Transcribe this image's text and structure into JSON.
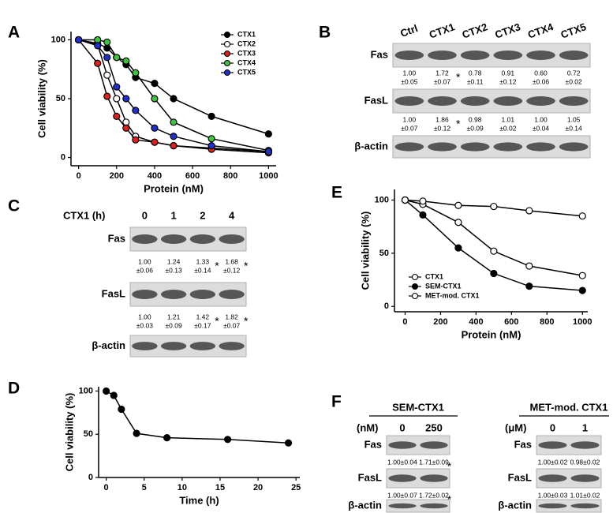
{
  "panel_labels": [
    "A",
    "B",
    "C",
    "D",
    "E",
    "F"
  ],
  "chart_data": [
    {
      "type": "line",
      "xlabel": "Protein (nM)",
      "ylabel": "Cell viability (%)",
      "x": [
        0,
        100,
        150,
        200,
        250,
        300,
        400,
        500,
        700,
        1000
      ],
      "series": [
        {
          "name": "CTX1",
          "color": "#000000",
          "values": [
            100,
            97,
            93,
            85,
            79,
            68,
            63,
            50,
            35,
            20
          ]
        },
        {
          "name": "CTX2",
          "color": "#ffffff",
          "values": [
            100,
            96,
            70,
            50,
            30,
            18,
            13,
            10,
            8,
            5
          ]
        },
        {
          "name": "CTX3",
          "color": "#e0201b",
          "values": [
            100,
            80,
            52,
            35,
            25,
            15,
            13,
            10,
            7,
            4
          ]
        },
        {
          "name": "CTX4",
          "color": "#3cc43c",
          "values": [
            100,
            100,
            98,
            85,
            82,
            72,
            50,
            30,
            16,
            6
          ]
        },
        {
          "name": "CTX5",
          "color": "#1f2fd0",
          "values": [
            100,
            95,
            85,
            60,
            50,
            40,
            25,
            18,
            10,
            5
          ]
        }
      ],
      "xlim": [
        -40,
        1040
      ],
      "ylim": [
        -7,
        107
      ],
      "xticks": [
        0,
        200,
        400,
        600,
        800,
        1000
      ],
      "yticks": [
        0,
        50,
        100
      ],
      "legend": "upper right"
    },
    {
      "type": "line",
      "xlabel": "Time (h)",
      "ylabel": "Cell viability (%)",
      "x": [
        0,
        1,
        2,
        4,
        8,
        16,
        24
      ],
      "series": [
        {
          "name": "CTX1",
          "color": "#000000",
          "values": [
            100,
            95,
            79,
            51,
            46,
            44,
            40
          ]
        }
      ],
      "xlim": [
        -1,
        25.5
      ],
      "ylim": [
        0,
        105
      ],
      "xticks": [
        0,
        5,
        10,
        15,
        20,
        25
      ],
      "yticks": [
        0,
        50,
        100
      ]
    },
    {
      "type": "line",
      "xlabel": "Protein (nM)",
      "ylabel": "Cell viability (%)",
      "x": [
        0,
        100,
        300,
        500,
        700,
        1000
      ],
      "series": [
        {
          "name": "CTX1",
          "color": "#ffffff",
          "values": [
            100,
            96,
            79,
            52,
            38,
            29
          ]
        },
        {
          "name": "SEM-CTX1",
          "color": "#000000",
          "values": [
            100,
            86,
            55,
            31,
            19,
            15
          ]
        },
        {
          "name": "MET-mod. CTX1",
          "color": "#ffffff",
          "values": [
            100,
            99,
            95,
            94,
            90,
            85
          ]
        }
      ],
      "xlim": [
        -60,
        1030
      ],
      "ylim": [
        -5,
        110
      ],
      "xticks": [
        0,
        200,
        400,
        600,
        800,
        1000
      ],
      "yticks": [
        0,
        50,
        100
      ],
      "legend": "lower left"
    }
  ],
  "blots": [
    {
      "lanes": [
        "Ctrl",
        "CTX1",
        "CTX2",
        "CTX3",
        "CTX4",
        "CTX5"
      ],
      "rows": [
        {
          "label": "Fas",
          "quant": [
            {
              "q": [
                "1.00",
                "±0.05"
              ]
            },
            {
              "q": [
                "1.72",
                "±0.07"
              ],
              "sig": "*"
            },
            {
              "q": [
                "0.78",
                "±0.11"
              ]
            },
            {
              "q": [
                "0.91",
                "±0.12"
              ]
            },
            {
              "q": [
                "0.60",
                "±0.06"
              ]
            },
            {
              "q": [
                "0.72",
                "±0.02"
              ]
            }
          ]
        },
        {
          "label": "FasL",
          "quant": [
            {
              "q": [
                "1.00",
                "±0.07"
              ]
            },
            {
              "q": [
                "1.86",
                "±0.12"
              ],
              "sig": "*"
            },
            {
              "q": [
                "0.98",
                "±0.09"
              ]
            },
            {
              "q": [
                "1.01",
                "±0.02"
              ]
            },
            {
              "q": [
                "1.00",
                "±0.04"
              ]
            },
            {
              "q": [
                "1.05",
                "±0.14"
              ]
            }
          ]
        },
        {
          "label": "β-actin"
        }
      ]
    },
    {
      "header": "CTX1 (h)",
      "lanes": [
        "0",
        "1",
        "2",
        "4"
      ],
      "rows": [
        {
          "label": "Fas",
          "quant": [
            {
              "q": [
                "1.00",
                "±0.06"
              ]
            },
            {
              "q": [
                "1.24",
                "±0.13"
              ]
            },
            {
              "q": [
                "1.33",
                "±0.14"
              ],
              "sig": "*"
            },
            {
              "q": [
                "1.68",
                "±0.12"
              ],
              "sig": "*"
            }
          ]
        },
        {
          "label": "FasL",
          "quant": [
            {
              "q": [
                "1.00",
                "±0.03"
              ]
            },
            {
              "q": [
                "1.21",
                "±0.09"
              ]
            },
            {
              "q": [
                "1.42",
                "±0.17"
              ],
              "sig": "*"
            },
            {
              "q": [
                "1.82",
                "±0.07"
              ],
              "sig": "*"
            }
          ]
        },
        {
          "label": "β-actin"
        }
      ]
    },
    {
      "title": "SEM-CTX1",
      "header": "(nM)",
      "lanes": [
        "0",
        "250"
      ],
      "rows": [
        {
          "label": "Fas",
          "quant": [
            {
              "q": [
                "1.00±0.04"
              ]
            },
            {
              "q": [
                "1.71±0.09"
              ],
              "sig": "*"
            }
          ]
        },
        {
          "label": "FasL",
          "quant": [
            {
              "q": [
                "1.00±0.07"
              ]
            },
            {
              "q": [
                "1.72±0.02"
              ],
              "sig": "*"
            }
          ]
        },
        {
          "label": "β-actin"
        }
      ]
    },
    {
      "title": "MET-mod. CTX1",
      "header": "(μM)",
      "lanes": [
        "0",
        "1"
      ],
      "rows": [
        {
          "label": "Fas",
          "quant": [
            {
              "q": [
                "1.00±0.02"
              ]
            },
            {
              "q": [
                "0.98±0.02"
              ]
            }
          ]
        },
        {
          "label": "FasL",
          "quant": [
            {
              "q": [
                "1.00±0.03"
              ]
            },
            {
              "q": [
                "1.01±0.02"
              ]
            }
          ]
        },
        {
          "label": "β-actin"
        }
      ]
    }
  ]
}
